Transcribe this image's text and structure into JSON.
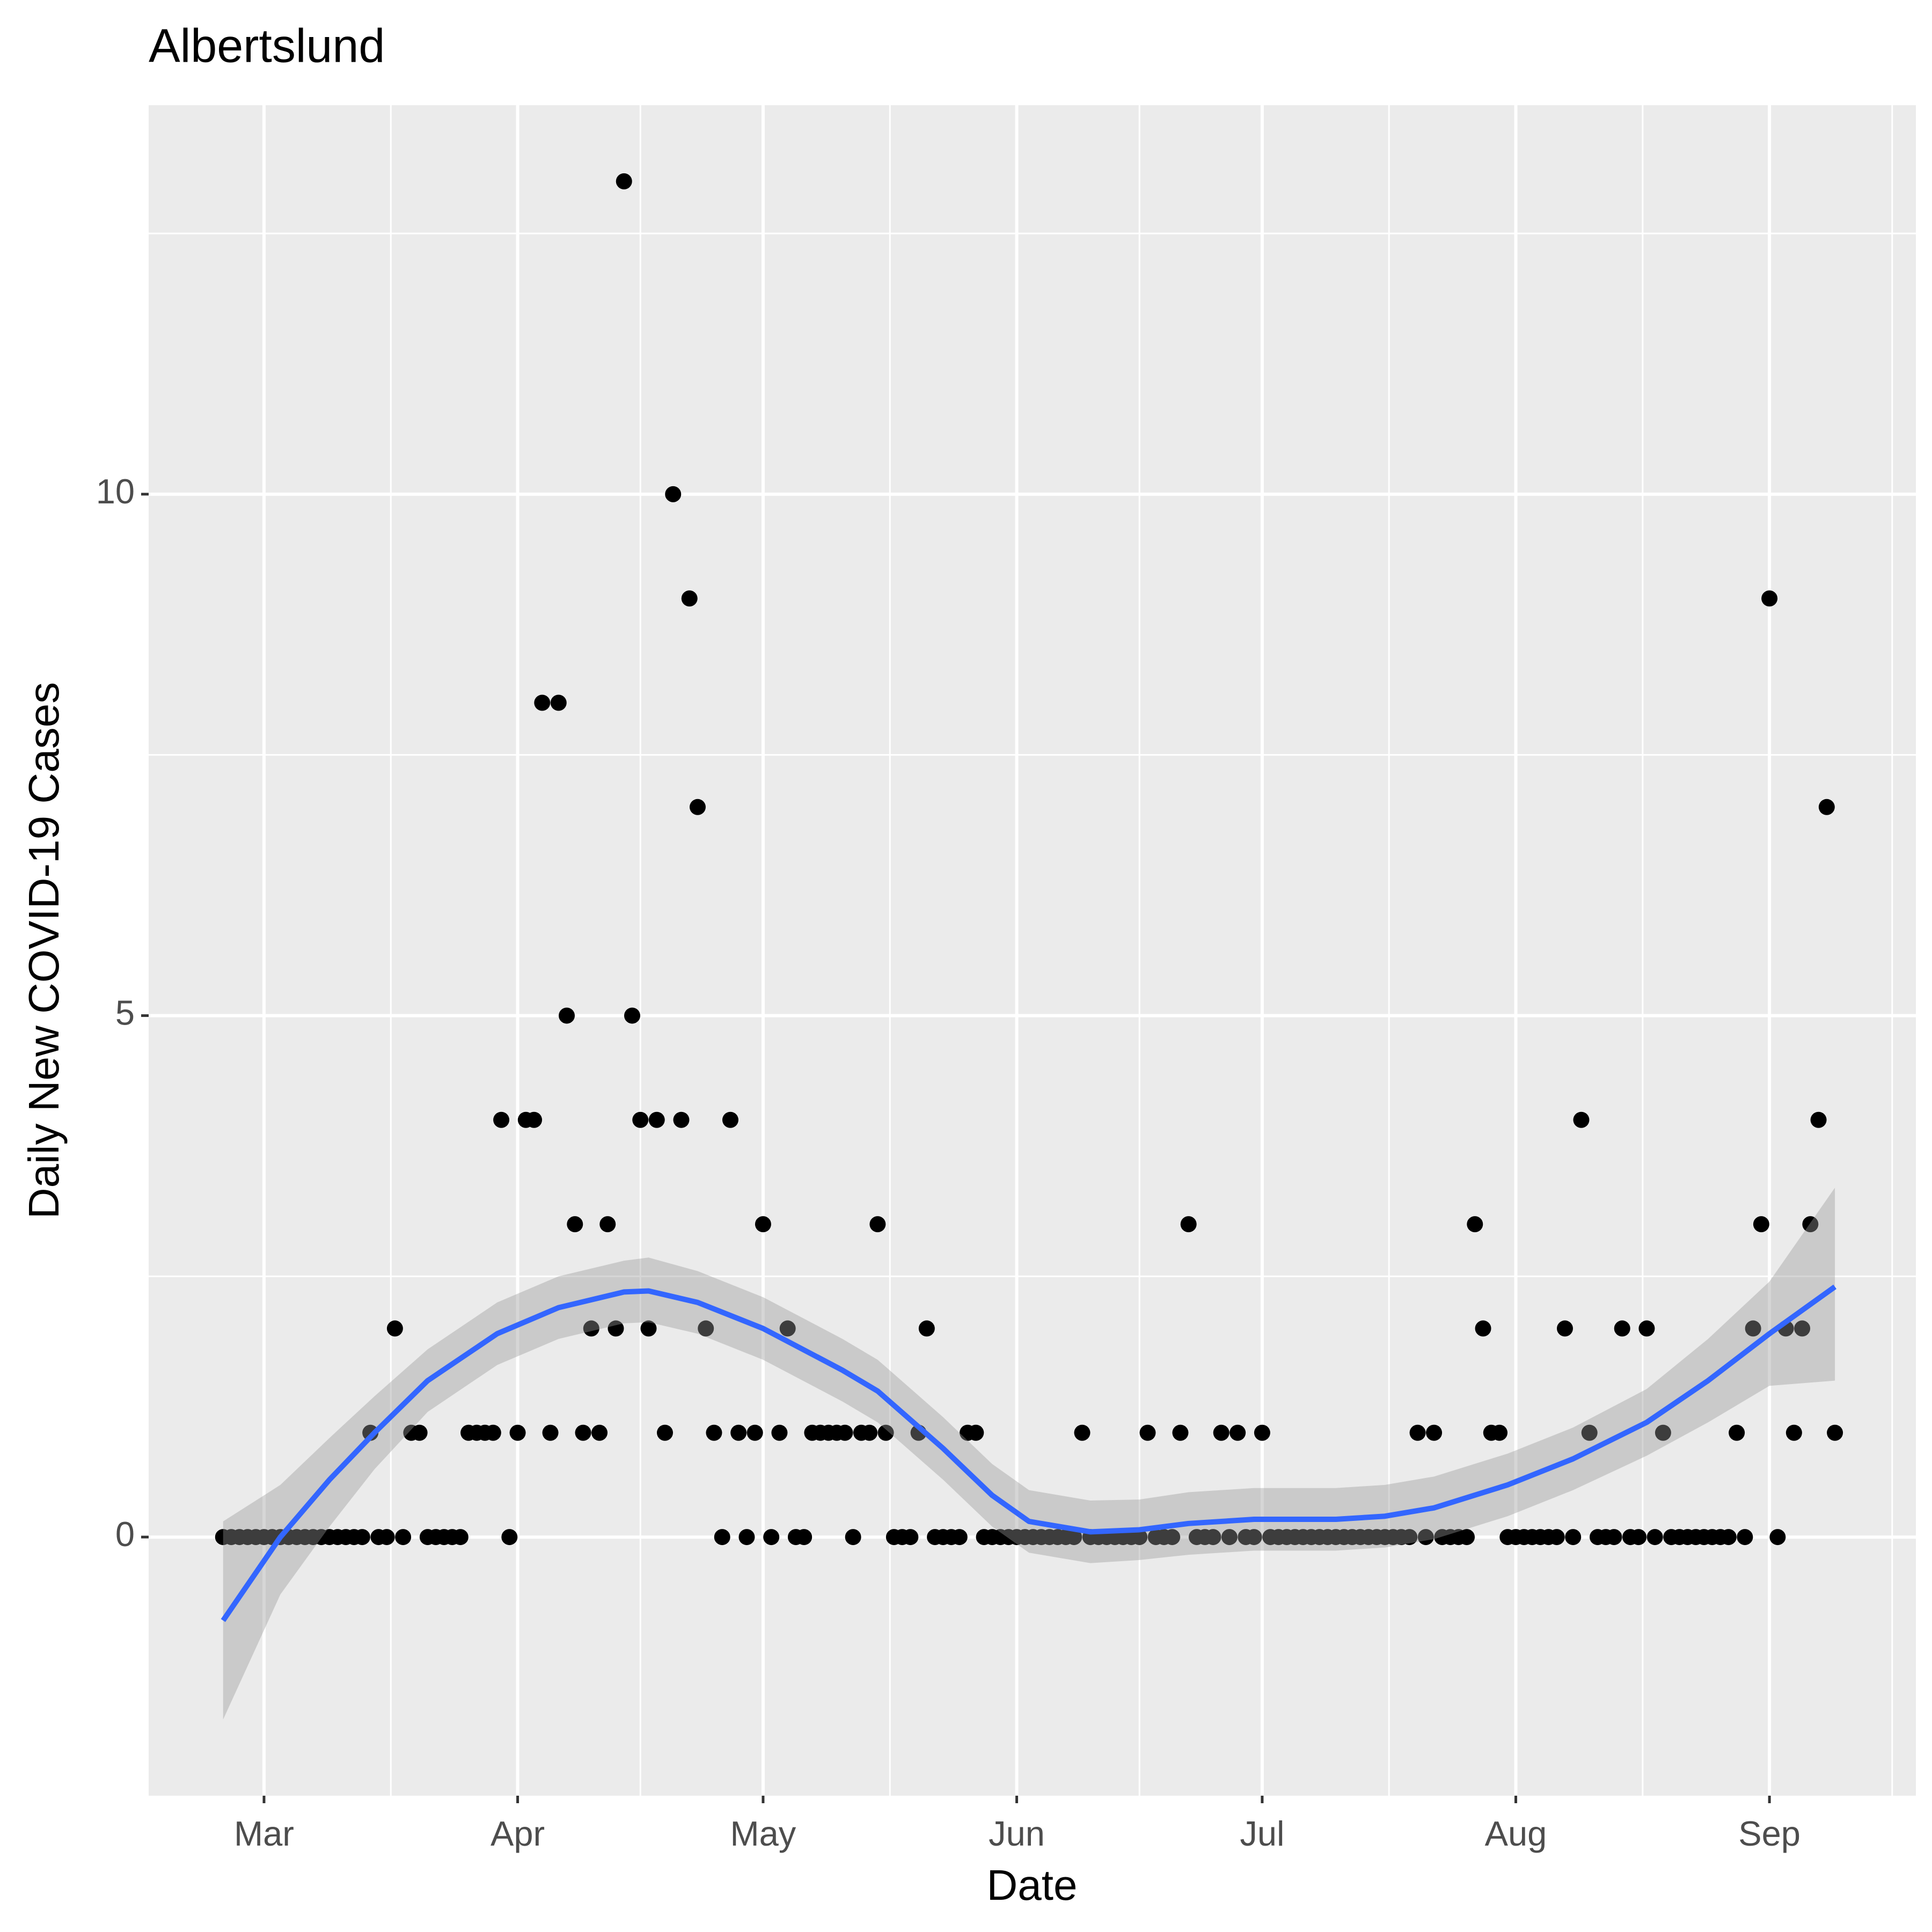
{
  "chart_data": {
    "type": "scatter",
    "title": "Albertslund",
    "x_label": "Date",
    "y_label": "Daily New COVID-19 Cases",
    "color": "#000000",
    "panel_color": "#ebebeb",
    "grid": true,
    "x": [
      56,
      57,
      58,
      59,
      60,
      61,
      62,
      63,
      64,
      65,
      66,
      67,
      68,
      69,
      70,
      71,
      72,
      73,
      74,
      75,
      76,
      77,
      78,
      79,
      80,
      81,
      82,
      83,
      84,
      85,
      86,
      87,
      88,
      89,
      90,
      91,
      92,
      93,
      94,
      95,
      96,
      97,
      98,
      99,
      100,
      101,
      102,
      103,
      104,
      105,
      106,
      107,
      108,
      109,
      110,
      111,
      112,
      113,
      114,
      115,
      116,
      117,
      118,
      119,
      120,
      121,
      122,
      123,
      124,
      125,
      126,
      127,
      128,
      129,
      130,
      131,
      132,
      133,
      134,
      135,
      136,
      137,
      138,
      139,
      140,
      141,
      142,
      143,
      144,
      145,
      146,
      147,
      148,
      149,
      150,
      151,
      152,
      153,
      154,
      155,
      156,
      157,
      158,
      159,
      160,
      161,
      162,
      163,
      164,
      165,
      166,
      167,
      168,
      169,
      170,
      171,
      172,
      173,
      174,
      175,
      176,
      177,
      178,
      179,
      180,
      181,
      182,
      183,
      184,
      185,
      186,
      187,
      188,
      189,
      190,
      191,
      192,
      193,
      194,
      195,
      196,
      197,
      198,
      199,
      200,
      201,
      202,
      203,
      204,
      205,
      206,
      207,
      208,
      209,
      210,
      211,
      212,
      213,
      214,
      215,
      216,
      217,
      218,
      219,
      220,
      221,
      222,
      223,
      224,
      225,
      226,
      227,
      228,
      229,
      230,
      231,
      232,
      233,
      234,
      235,
      236,
      237,
      238,
      239,
      240,
      241,
      242,
      243,
      244,
      245,
      246,
      247,
      248,
      249,
      250,
      251,
      252,
      253
    ],
    "values": [
      0,
      0,
      0,
      0,
      0,
      0,
      0,
      0,
      0,
      0,
      0,
      0,
      0,
      0,
      0,
      0,
      0,
      0,
      1,
      0,
      0,
      2,
      0,
      1,
      1,
      0,
      0,
      0,
      0,
      0,
      1,
      1,
      1,
      1,
      4,
      0,
      1,
      4,
      4,
      8,
      1,
      8,
      5,
      3,
      1,
      2,
      1,
      3,
      2,
      13,
      5,
      4,
      2,
      4,
      1,
      10,
      4,
      9,
      7,
      2,
      1,
      0,
      4,
      1,
      0,
      1,
      3,
      0,
      1,
      2,
      0,
      0,
      1,
      1,
      1,
      1,
      1,
      0,
      1,
      1,
      3,
      1,
      0,
      0,
      0,
      1,
      2,
      0,
      0,
      0,
      0,
      1,
      1,
      0,
      0,
      0,
      0,
      0,
      0,
      0,
      0,
      0,
      0,
      0,
      0,
      1,
      0,
      0,
      0,
      0,
      0,
      0,
      0,
      1,
      0,
      0,
      0,
      1,
      3,
      0,
      0,
      0,
      1,
      0,
      1,
      0,
      0,
      1,
      0,
      0,
      0,
      0,
      0,
      0,
      0,
      0,
      0,
      0,
      0,
      0,
      0,
      0,
      0,
      0,
      0,
      0,
      1,
      0,
      1,
      0,
      0,
      0,
      0,
      3,
      2,
      1,
      1,
      0,
      0,
      0,
      0,
      0,
      0,
      0,
      2,
      0,
      4,
      1,
      0,
      0,
      0,
      2,
      0,
      0,
      2,
      0,
      1,
      0,
      0,
      0,
      0,
      0,
      0,
      0,
      0,
      1,
      0,
      2,
      3,
      9,
      0,
      2,
      1,
      2,
      3,
      4,
      7,
      1
    ],
    "smooth": {
      "color": "#3366ff",
      "band_color": "#999999",
      "x": [
        56,
        63,
        69,
        74.5,
        81,
        89.5,
        97,
        105,
        108,
        114,
        122,
        131.7,
        136,
        144,
        150,
        154.5,
        162,
        168,
        174,
        182,
        192,
        198,
        204,
        213,
        221,
        230,
        237.5,
        245,
        253
      ],
      "values": [
        -0.8,
        0,
        0.55,
        1.0,
        1.5,
        1.95,
        2.2,
        2.35,
        2.36,
        2.25,
        2.0,
        1.6,
        1.4,
        0.85,
        0.4,
        0.15,
        0.05,
        0.07,
        0.13,
        0.17,
        0.17,
        0.2,
        0.28,
        0.5,
        0.75,
        1.1,
        1.5,
        1.95,
        2.4
      ],
      "lower": [
        -1.75,
        -0.55,
        0.1,
        0.65,
        1.2,
        1.65,
        1.9,
        2.05,
        2.06,
        1.95,
        1.7,
        1.3,
        1.1,
        0.55,
        0.1,
        -0.15,
        -0.25,
        -0.22,
        -0.17,
        -0.13,
        -0.13,
        -0.1,
        -0.02,
        0.2,
        0.45,
        0.78,
        1.1,
        1.45,
        1.5
      ],
      "upper": [
        0.15,
        0.5,
        0.95,
        1.35,
        1.8,
        2.25,
        2.5,
        2.65,
        2.68,
        2.55,
        2.3,
        1.9,
        1.7,
        1.15,
        0.7,
        0.45,
        0.35,
        0.36,
        0.43,
        0.47,
        0.47,
        0.5,
        0.58,
        0.8,
        1.05,
        1.42,
        1.9,
        2.45,
        3.35
      ]
    },
    "xlim": [
      46.9,
      262.9
    ],
    "ylim": [
      -2.48,
      13.73
    ],
    "xticks": [
      {
        "value": 61,
        "label": "Mar"
      },
      {
        "value": 92,
        "label": "Apr"
      },
      {
        "value": 122,
        "label": "May"
      },
      {
        "value": 153,
        "label": "Jun"
      },
      {
        "value": 183,
        "label": "Jul"
      },
      {
        "value": 214,
        "label": "Aug"
      },
      {
        "value": 245,
        "label": "Sep"
      }
    ],
    "x_minor_ticks": [
      76.5,
      107,
      137.5,
      168,
      198.5,
      229.5,
      260
    ],
    "yticks": [
      0,
      5,
      10
    ],
    "y_minor_ticks": [
      2.5,
      7.5,
      12.5
    ]
  }
}
